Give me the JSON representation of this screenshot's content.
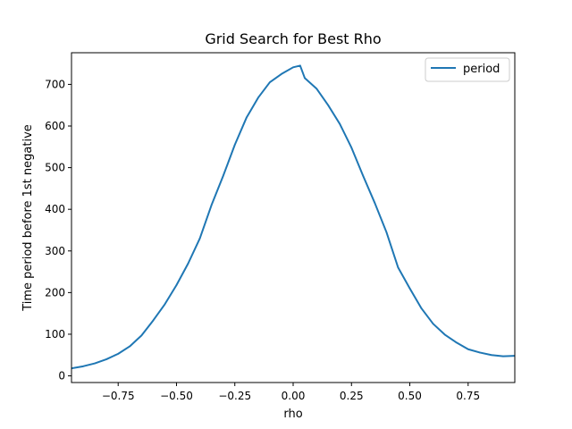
{
  "chart_data": {
    "type": "line",
    "title": "Grid Search for Best Rho",
    "xlabel": "rho",
    "ylabel": "Time period before 1st negative",
    "xlim": [
      -0.95,
      0.95
    ],
    "ylim": [
      -16,
      776
    ],
    "xticks": [
      -0.75,
      -0.5,
      -0.25,
      0.0,
      0.25,
      0.5,
      0.75
    ],
    "xtick_labels": [
      "−0.75",
      "−0.50",
      "−0.25",
      "0.00",
      "0.25",
      "0.50",
      "0.75"
    ],
    "yticks": [
      0,
      100,
      200,
      300,
      400,
      500,
      600,
      700
    ],
    "ytick_labels": [
      "0",
      "100",
      "200",
      "300",
      "400",
      "500",
      "600",
      "700"
    ],
    "grid": false,
    "legend_position": "top-right",
    "series": [
      {
        "name": "period",
        "color": "#1f77b4",
        "x": [
          -0.95,
          -0.9,
          -0.85,
          -0.8,
          -0.75,
          -0.7,
          -0.65,
          -0.6,
          -0.55,
          -0.5,
          -0.45,
          -0.4,
          -0.35,
          -0.3,
          -0.25,
          -0.2,
          -0.15,
          -0.1,
          -0.05,
          0.0,
          0.03,
          0.05,
          0.1,
          0.15,
          0.2,
          0.25,
          0.3,
          0.35,
          0.4,
          0.45,
          0.5,
          0.55,
          0.6,
          0.65,
          0.7,
          0.75,
          0.8,
          0.85,
          0.9,
          0.95
        ],
        "values": [
          18,
          23,
          30,
          40,
          53,
          71,
          97,
          133,
          172,
          218,
          270,
          330,
          410,
          480,
          555,
          620,
          668,
          705,
          725,
          741,
          745,
          715,
          690,
          650,
          605,
          548,
          480,
          415,
          345,
          260,
          210,
          162,
          125,
          99,
          80,
          64,
          56,
          50,
          47,
          48
        ]
      }
    ]
  }
}
